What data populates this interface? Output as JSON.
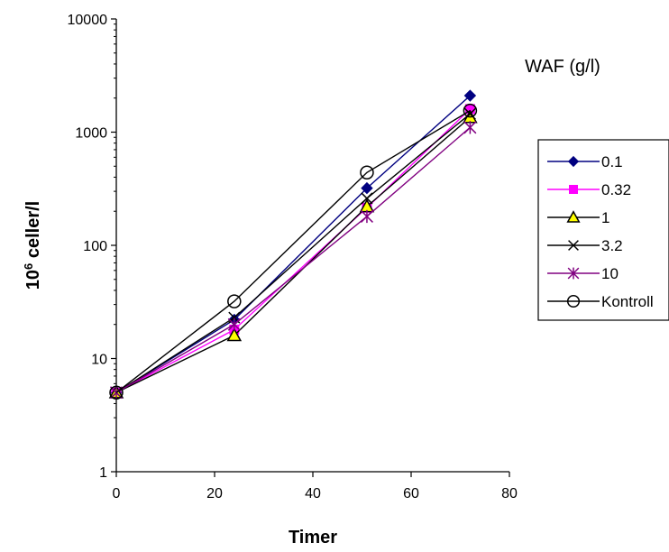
{
  "chart_data": {
    "type": "line",
    "title": "",
    "xlabel": "Timer",
    "ylabel_base": "10",
    "ylabel_exp": "6",
    "ylabel_rest": " celler/l",
    "xlim": [
      0,
      80
    ],
    "ylim": [
      1,
      10000
    ],
    "yscale": "log",
    "x_ticks": [
      "0",
      "20",
      "40",
      "60",
      "80"
    ],
    "y_ticks": [
      "1",
      "10",
      "100",
      "1000",
      "10000"
    ],
    "grid": false,
    "legend_title": "WAF (g/l)",
    "legend_position": "right",
    "series": [
      {
        "name": "0.1",
        "color": "#000080",
        "marker": "diamond",
        "x": [
          0,
          24,
          51,
          72
        ],
        "y": [
          5,
          22,
          320,
          2100
        ]
      },
      {
        "name": "0.32",
        "color": "#ff00ff",
        "marker": "square",
        "x": [
          0,
          24,
          51,
          72
        ],
        "y": [
          5,
          18,
          215,
          1600
        ]
      },
      {
        "name": "1",
        "color": "#000000",
        "marker": "triangle",
        "marker_fill": "#ffff00",
        "x": [
          0,
          24,
          51,
          72
        ],
        "y": [
          5,
          16,
          220,
          1350
        ]
      },
      {
        "name": "3.2",
        "color": "#000000",
        "marker": "x",
        "x": [
          0,
          24,
          51,
          72
        ],
        "y": [
          5,
          23,
          260,
          1450
        ]
      },
      {
        "name": "10",
        "color": "#800080",
        "marker": "star",
        "x": [
          0,
          24,
          51,
          72
        ],
        "y": [
          5,
          20,
          180,
          1100
        ]
      },
      {
        "name": "Kontroll",
        "color": "#000000",
        "marker": "circle",
        "x": [
          0,
          24,
          51,
          72
        ],
        "y": [
          5,
          32,
          440,
          1550
        ]
      }
    ]
  }
}
